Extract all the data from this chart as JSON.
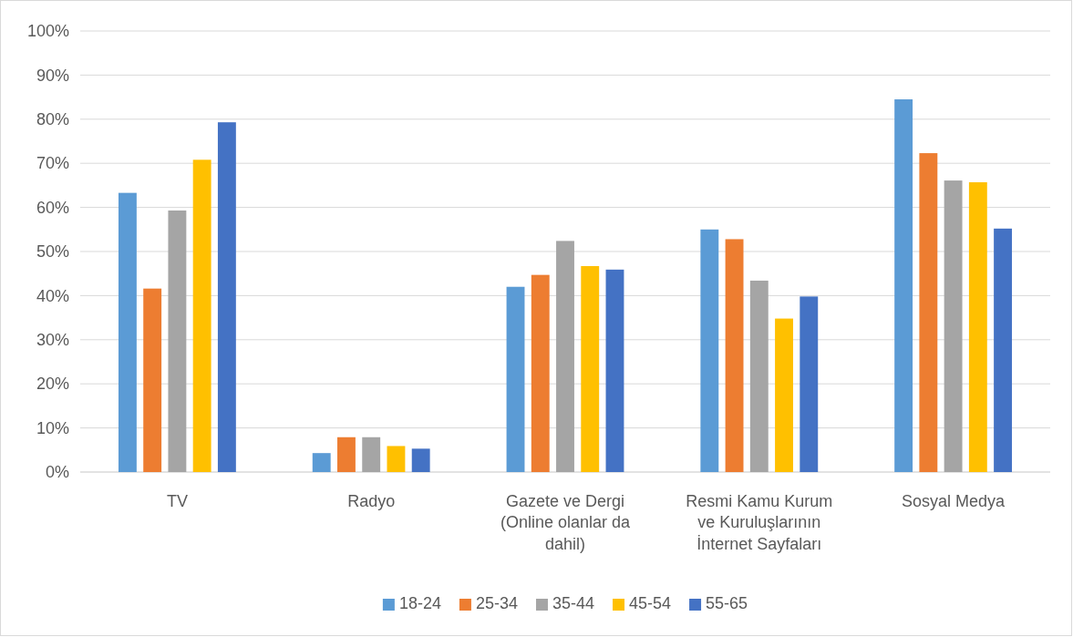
{
  "chart_data": {
    "type": "bar",
    "categories": [
      "TV",
      "Radyo",
      "Gazete ve Dergi (Online olanlar da dahil)",
      "Resmi Kamu Kurum ve Kuruluşlarının İnternet Sayfaları",
      "Sosyal Medya"
    ],
    "series": [
      {
        "name": "18-24",
        "color": "#5b9bd5",
        "values": [
          63.3,
          4.3,
          42.0,
          55.0,
          84.5
        ]
      },
      {
        "name": "25-34",
        "color": "#ed7d31",
        "values": [
          41.6,
          7.9,
          44.7,
          52.8,
          72.3
        ]
      },
      {
        "name": "35-44",
        "color": "#a5a5a5",
        "values": [
          59.3,
          7.9,
          52.4,
          43.4,
          66.1
        ]
      },
      {
        "name": "45-54",
        "color": "#ffc000",
        "values": [
          70.8,
          5.9,
          46.7,
          34.8,
          65.7
        ]
      },
      {
        "name": "55-65",
        "color": "#4472c4",
        "values": [
          79.3,
          5.3,
          45.9,
          39.8,
          55.2
        ]
      }
    ],
    "ylim": [
      0,
      100
    ],
    "yticks": [
      {
        "value": 0,
        "label": "0%"
      },
      {
        "value": 10,
        "label": "10%"
      },
      {
        "value": 20,
        "label": "20%"
      },
      {
        "value": 30,
        "label": "30%"
      },
      {
        "value": 40,
        "label": "40%"
      },
      {
        "value": 50,
        "label": "50%"
      },
      {
        "value": 60,
        "label": "60%"
      },
      {
        "value": 70,
        "label": "70%"
      },
      {
        "value": 80,
        "label": "80%"
      },
      {
        "value": 90,
        "label": "90%"
      },
      {
        "value": 100,
        "label": "100%"
      }
    ],
    "grid": "y",
    "legend": "bottom"
  }
}
